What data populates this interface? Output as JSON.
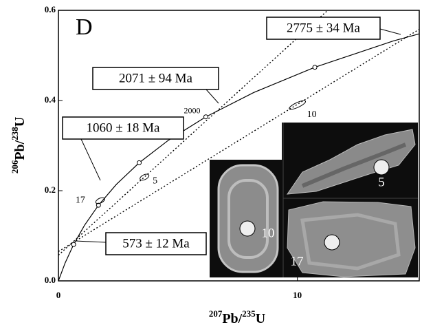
{
  "chart_data": {
    "type": "concordia",
    "panel_label": "D",
    "xlabel": [
      {
        "text": "207",
        "sup": true
      },
      {
        "text": "Pb/",
        "sup": false
      },
      {
        "text": "235",
        "sup": true
      },
      {
        "text": "U",
        "sup": false
      }
    ],
    "ylabel": [
      {
        "text": "206",
        "sup": true
      },
      {
        "text": "Pb/",
        "sup": false
      },
      {
        "text": "238",
        "sup": true
      },
      {
        "text": "U",
        "sup": false
      }
    ],
    "xlim": [
      0,
      15.1
    ],
    "ylim": [
      0,
      0.6
    ],
    "xticks": [
      0,
      10
    ],
    "yticks": [
      {
        "value": 0,
        "label": "0.0"
      },
      0.2,
      0.4,
      0.6
    ],
    "concordia": {
      "x": [
        0,
        0.2792,
        0.6362,
        1.0931,
        1.6774,
        2.4249,
        3.3811,
        4.604,
        6.169,
        8.1703,
        10.731,
        14.006,
        18.19
      ],
      "y": [
        0,
        0.03954,
        0.0807,
        0.1234,
        0.1678,
        0.214,
        0.262,
        0.3119,
        0.3638,
        0.4177,
        0.4737,
        0.532,
        0.5927
      ]
    },
    "concordia_ticks": {
      "x": [
        0.6362,
        1.6774,
        3.3811,
        6.169,
        10.731
      ],
      "y": [
        0.0807,
        0.1678,
        0.262,
        0.3638,
        0.4737
      ],
      "labels": [
        null,
        null,
        null,
        "2000",
        null
      ]
    },
    "discordia": [
      {
        "x": [
          0,
          11.27
        ],
        "y": [
          0.057,
          0.6
        ]
      },
      {
        "x": [
          0,
          15.1
        ],
        "y": [
          0.065,
          0.558
        ]
      }
    ],
    "analyses": [
      {
        "label": "17",
        "x": 1.75,
        "y": 0.178
      },
      {
        "label": "5",
        "x": 3.6,
        "y": 0.23
      },
      {
        "label": "10",
        "x": 10.0,
        "y": 0.39
      }
    ],
    "age_labels": [
      "2775 ± 34 Ma",
      "2071 ± 94 Ma",
      "1060 ± 18 Ma",
      "573 ± 12 Ma"
    ],
    "photo_labels": [
      "5",
      "10",
      "17"
    ]
  }
}
